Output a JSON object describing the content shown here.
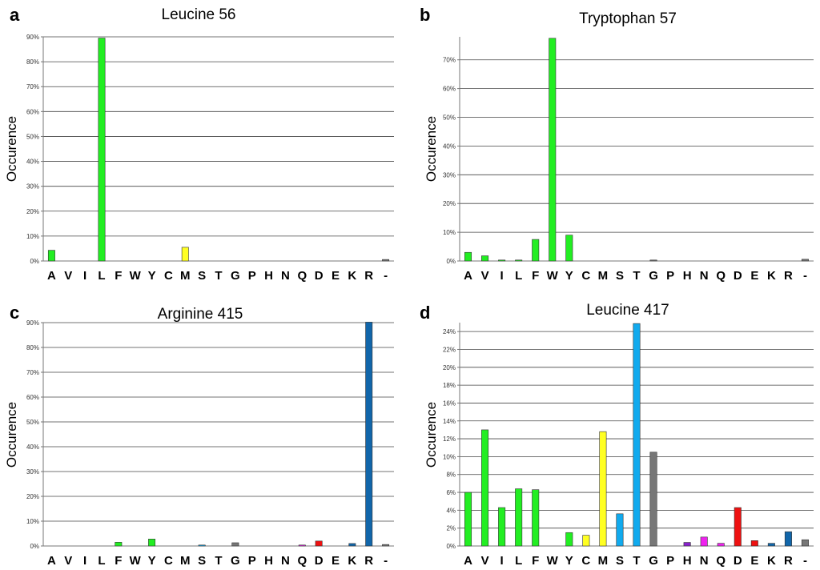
{
  "figure": {
    "panels": [
      "a",
      "b",
      "c",
      "d"
    ]
  },
  "colors": {
    "hydrophobic": "#22ee22",
    "polar_yellow": "#ffff22",
    "polar_blue": "#11aaee",
    "gray": "#777777",
    "purple": "#8822cc",
    "magenta": "#ee22ee",
    "red": "#ee1111",
    "navy": "#1166aa"
  },
  "chart_data": [
    {
      "panel": "a",
      "type": "bar",
      "title": "Leucine 56",
      "ylabel": "Occurence",
      "xlabel": "",
      "categories": [
        "A",
        "V",
        "I",
        "L",
        "F",
        "W",
        "Y",
        "C",
        "M",
        "S",
        "T",
        "G",
        "P",
        "H",
        "N",
        "Q",
        "D",
        "E",
        "K",
        "R",
        "-"
      ],
      "values": [
        4.3,
        0,
        0,
        89.5,
        0,
        0,
        0,
        0,
        5.5,
        0,
        0,
        0,
        0,
        0,
        0,
        0,
        0,
        0,
        0,
        0,
        0.6
      ],
      "ylim": [
        0,
        90
      ],
      "yticks": [
        0,
        10,
        20,
        30,
        40,
        50,
        60,
        70,
        80,
        90
      ],
      "ytick_labels": [
        "0%",
        "10%",
        "20%",
        "30%",
        "40%",
        "50%",
        "60%",
        "70%",
        "80%",
        "90%"
      ]
    },
    {
      "panel": "b",
      "type": "bar",
      "title": "Tryptophan 57",
      "ylabel": "Occurence",
      "xlabel": "",
      "categories": [
        "A",
        "V",
        "I",
        "L",
        "F",
        "W",
        "Y",
        "C",
        "M",
        "S",
        "T",
        "G",
        "P",
        "H",
        "N",
        "Q",
        "D",
        "E",
        "K",
        "R",
        "-"
      ],
      "values": [
        3.0,
        1.8,
        0.3,
        0.2,
        7.5,
        77.5,
        9.0,
        0,
        0,
        0,
        0,
        0.2,
        0,
        0,
        0,
        0,
        0,
        0,
        0,
        0,
        0.6
      ],
      "ylim": [
        0,
        78
      ],
      "yticks": [
        0,
        10,
        20,
        30,
        40,
        50,
        60,
        70
      ],
      "ytick_labels": [
        "0%",
        "10%",
        "20%",
        "30%",
        "40%",
        "50%",
        "60%",
        "70%"
      ]
    },
    {
      "panel": "c",
      "type": "bar",
      "title": "Arginine 415",
      "ylabel": "Occurence",
      "xlabel": "",
      "categories": [
        "A",
        "V",
        "I",
        "L",
        "F",
        "W",
        "Y",
        "C",
        "M",
        "S",
        "T",
        "G",
        "P",
        "H",
        "N",
        "Q",
        "D",
        "E",
        "K",
        "R",
        "-"
      ],
      "values": [
        0,
        0,
        0,
        0,
        1.5,
        0,
        2.8,
        0,
        0,
        0.2,
        0,
        1.3,
        0,
        0,
        0,
        0.2,
        2.0,
        0,
        1.0,
        90.2,
        0.6
      ],
      "ylim": [
        0,
        90
      ],
      "yticks": [
        0,
        10,
        20,
        30,
        40,
        50,
        60,
        70,
        80,
        90
      ],
      "ytick_labels": [
        "0%",
        "10%",
        "20%",
        "30%",
        "40%",
        "50%",
        "60%",
        "70%",
        "80%",
        "90%"
      ]
    },
    {
      "panel": "d",
      "type": "bar",
      "title": "Leucine 417",
      "ylabel": "Occurence",
      "xlabel": "",
      "categories": [
        "A",
        "V",
        "I",
        "L",
        "F",
        "W",
        "Y",
        "C",
        "M",
        "S",
        "T",
        "G",
        "P",
        "H",
        "N",
        "Q",
        "D",
        "E",
        "K",
        "R",
        "-"
      ],
      "values": [
        6.0,
        13.0,
        4.3,
        6.4,
        6.3,
        0,
        1.5,
        1.2,
        12.8,
        3.6,
        24.9,
        10.5,
        0,
        0.4,
        1.0,
        0.3,
        4.3,
        0.6,
        0.3,
        1.6,
        0.7
      ],
      "ylim": [
        0,
        25
      ],
      "yticks": [
        0,
        2,
        4,
        6,
        8,
        10,
        12,
        14,
        16,
        18,
        20,
        22,
        24
      ],
      "ytick_labels": [
        "0%",
        "2%",
        "4%",
        "6%",
        "8%",
        "10%",
        "12%",
        "14%",
        "16%",
        "18%",
        "20%",
        "22%",
        "24%"
      ]
    }
  ],
  "bar_colors": {
    "A": "#22ee22",
    "V": "#22ee22",
    "I": "#22ee22",
    "L": "#22ee22",
    "F": "#22ee22",
    "W": "#22ee22",
    "Y": "#22ee22",
    "C": "#ffff22",
    "M": "#ffff22",
    "S": "#11aaee",
    "T": "#11aaee",
    "G": "#777777",
    "P": "#777777",
    "H": "#8822cc",
    "N": "#ee22ee",
    "Q": "#ee22ee",
    "D": "#ee1111",
    "E": "#ee1111",
    "K": "#1166aa",
    "R": "#1166aa",
    "-": "#777777"
  }
}
